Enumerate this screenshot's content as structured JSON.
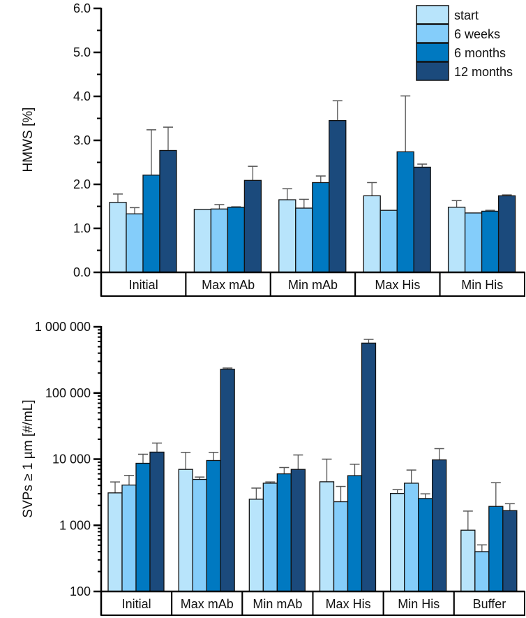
{
  "colors": {
    "start": "#b8e4fb",
    "6 weeks": "#84cdfa",
    "6 months": "#0079c1",
    "12 months": "#1b4a7c",
    "error": "#555555"
  },
  "chart_data": [
    {
      "type": "bar",
      "title": "",
      "xlabel": "",
      "ylabel": "HMWS [%]",
      "yscale": "linear",
      "ylim": [
        0,
        6
      ],
      "yticks": [
        0,
        1,
        2,
        3,
        4,
        5,
        6
      ],
      "ytick_labels": [
        "0.0",
        "1.0",
        "2.0",
        "3.0",
        "4.0",
        "5.0",
        "6.0"
      ],
      "legend": {
        "placement": "top-right",
        "entries": [
          "start",
          "6 weeks",
          "6 months",
          "12 months"
        ]
      },
      "categories": [
        "Initial",
        "Max mAb",
        "Min mAb",
        "Max His",
        "Min His"
      ],
      "series": [
        {
          "name": "start",
          "values": [
            1.59,
            1.43,
            1.65,
            1.74,
            1.48
          ],
          "error_upper": [
            1.78,
            1.43,
            1.9,
            2.04,
            1.63
          ]
        },
        {
          "name": "6 weeks",
          "values": [
            1.33,
            1.44,
            1.46,
            1.41,
            1.35
          ],
          "error_upper": [
            1.47,
            1.54,
            1.66,
            1.41,
            1.35
          ]
        },
        {
          "name": "6 months",
          "values": [
            2.21,
            1.48,
            2.04,
            2.74,
            1.39
          ],
          "error_upper": [
            3.24,
            1.49,
            2.19,
            4.01,
            1.41
          ]
        },
        {
          "name": "12 months",
          "values": [
            2.77,
            2.09,
            3.45,
            2.39,
            1.74
          ],
          "error_upper": [
            3.3,
            2.41,
            3.9,
            2.46,
            1.76
          ]
        }
      ]
    },
    {
      "type": "bar",
      "title": "",
      "xlabel": "",
      "ylabel": "SVPs ≥ 1 µm [#/mL]",
      "yscale": "log",
      "ylim": [
        100,
        1000000
      ],
      "yticks": [
        100,
        1000,
        10000,
        100000,
        1000000
      ],
      "ytick_labels": [
        "100",
        "1 000",
        "10 000",
        "100 000",
        "1 000 000"
      ],
      "categories": [
        "Initial",
        "Max mAb",
        "Min mAb",
        "Max His",
        "Min His",
        "Buffer"
      ],
      "series": [
        {
          "name": "start",
          "values": [
            3090,
            7000,
            2480,
            4550,
            3030,
            844
          ],
          "error_upper": [
            4520,
            12650,
            3650,
            10000,
            3460,
            1640
          ]
        },
        {
          "name": "6 weeks",
          "values": [
            4060,
            4940,
            4330,
            2270,
            4330,
            400
          ],
          "error_upper": [
            5680,
            5360,
            4520,
            3870,
            6840,
            506
          ]
        },
        {
          "name": "6 months",
          "values": [
            8650,
            9530,
            6000,
            5630,
            2540,
            1930
          ],
          "error_upper": [
            11860,
            12650,
            7470,
            8380,
            2990,
            4400
          ]
        },
        {
          "name": "12 months",
          "values": [
            12770,
            228600,
            7000,
            567000,
            9750,
            1670
          ],
          "error_upper": [
            17500,
            238000,
            11560,
            646000,
            14400,
            2120
          ]
        }
      ]
    }
  ]
}
